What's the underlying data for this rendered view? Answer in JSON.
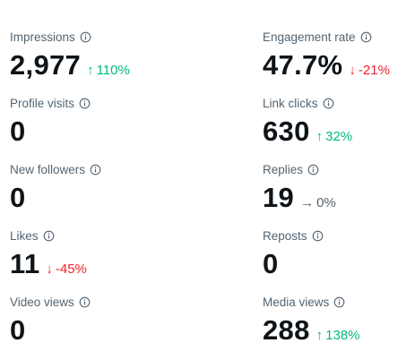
{
  "metrics": [
    {
      "label": "Impressions",
      "value": "2,977",
      "change": {
        "arrow": "↑",
        "text": "110%",
        "color": "#00ba7c"
      }
    },
    {
      "label": "Engagement rate",
      "value": "47.7%",
      "change": {
        "arrow": "↓",
        "text": "-21%",
        "color": "#f4212e"
      }
    },
    {
      "label": "Profile visits",
      "value": "0"
    },
    {
      "label": "Link clicks",
      "value": "630",
      "change": {
        "arrow": "↑",
        "text": "32%",
        "color": "#00ba7c"
      }
    },
    {
      "label": "New followers",
      "value": "0"
    },
    {
      "label": "Replies",
      "value": "19",
      "change": {
        "arrow": "→",
        "text": "0%",
        "color": "#536471"
      }
    },
    {
      "label": "Likes",
      "value": "11",
      "change": {
        "arrow": "↓",
        "text": "-45%",
        "color": "#f4212e"
      }
    },
    {
      "label": "Reposts",
      "value": "0"
    },
    {
      "label": "Video views",
      "value": "0"
    },
    {
      "label": "Media views",
      "value": "288",
      "change": {
        "arrow": "↑",
        "text": "138%",
        "color": "#00ba7c"
      }
    }
  ]
}
